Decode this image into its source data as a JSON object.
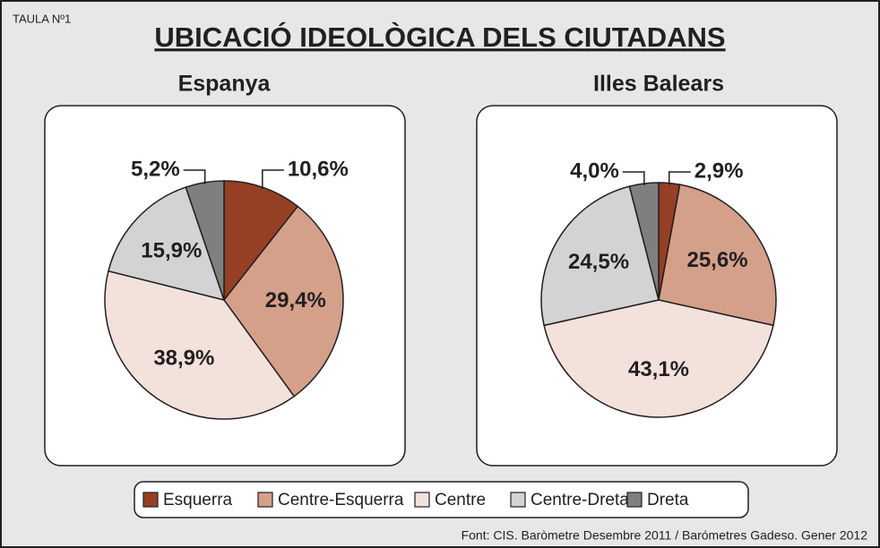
{
  "tag": "TAULA Nº1",
  "title": "UBICACIÓ IDEOLÒGICA DELS CIUTADANS",
  "legend": {
    "items": [
      "Esquerra",
      "Centre-Esquerra",
      "Centre",
      "Centre-Dreta",
      "Dreta"
    ],
    "colors": [
      "#953f24",
      "#d4a08a",
      "#f3e2dc",
      "#d3d3d5",
      "#7f7f7f"
    ]
  },
  "source": "Font: CIS. Baròmetre Desembre 2011 / Barómetres Gadeso. Gener 2012",
  "chart_data": [
    {
      "type": "pie",
      "title": "Espanya",
      "values": [
        10.6,
        29.4,
        38.9,
        15.9,
        5.2
      ],
      "value_labels": [
        "10,6%",
        "29,4%",
        "38,9%",
        "15,9%",
        "5,2%"
      ]
    },
    {
      "type": "pie",
      "title": "Illes Balears",
      "values": [
        2.9,
        25.6,
        43.1,
        24.5,
        4.0
      ],
      "value_labels": [
        "2,9%",
        "25,6%",
        "43,1%",
        "24,5%",
        "4,0%"
      ]
    }
  ]
}
